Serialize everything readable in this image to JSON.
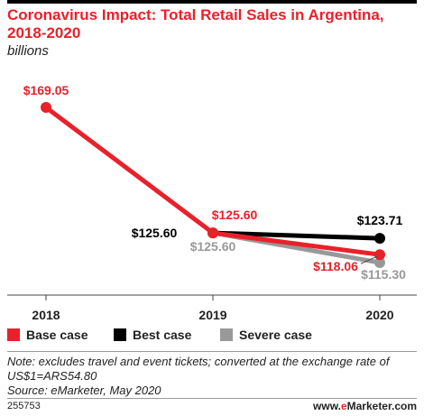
{
  "header": {
    "title": "Coronavirus Impact: Total Retail Sales in Argentina, 2018-2020",
    "subtitle": "billions"
  },
  "chart_data": {
    "type": "line",
    "title": "Coronavirus Impact: Total Retail Sales in Argentina, 2018-2020",
    "subtitle": "billions",
    "categories": [
      "2018",
      "2019",
      "2020"
    ],
    "ylim": [
      100,
      175
    ],
    "grid": false,
    "legend_position": "bottom",
    "series": [
      {
        "name": "Best case",
        "color": "#000000",
        "values": [
          null,
          125.6,
          123.71
        ],
        "labels": [
          "",
          "$125.60",
          "$123.71"
        ]
      },
      {
        "name": "Severe case",
        "color": "#999999",
        "values": [
          null,
          125.6,
          115.3
        ],
        "labels": [
          "",
          "$125.60",
          "$115.30"
        ]
      },
      {
        "name": "Base case",
        "color": "#e8212a",
        "values": [
          169.05,
          125.6,
          118.06
        ],
        "labels": [
          "$169.05",
          "$125.60",
          "$118.06"
        ]
      }
    ]
  },
  "legend": {
    "items": [
      {
        "label": "Base case",
        "color": "#e8212a"
      },
      {
        "label": "Best case",
        "color": "#000000"
      },
      {
        "label": "Severe case",
        "color": "#999999"
      }
    ]
  },
  "footer": {
    "note_line1": "Note: excludes travel and event tickets; converted at the exchange rate of",
    "note_line2": "US$1=ARS54.80",
    "source": "Source: eMarketer, May 2020",
    "chart_id": "255753",
    "brand_prefix": "www.",
    "brand_e": "e",
    "brand_suffix": "Marketer.com"
  },
  "colors": {
    "accent": "#e8212a",
    "axis": "#444444"
  }
}
